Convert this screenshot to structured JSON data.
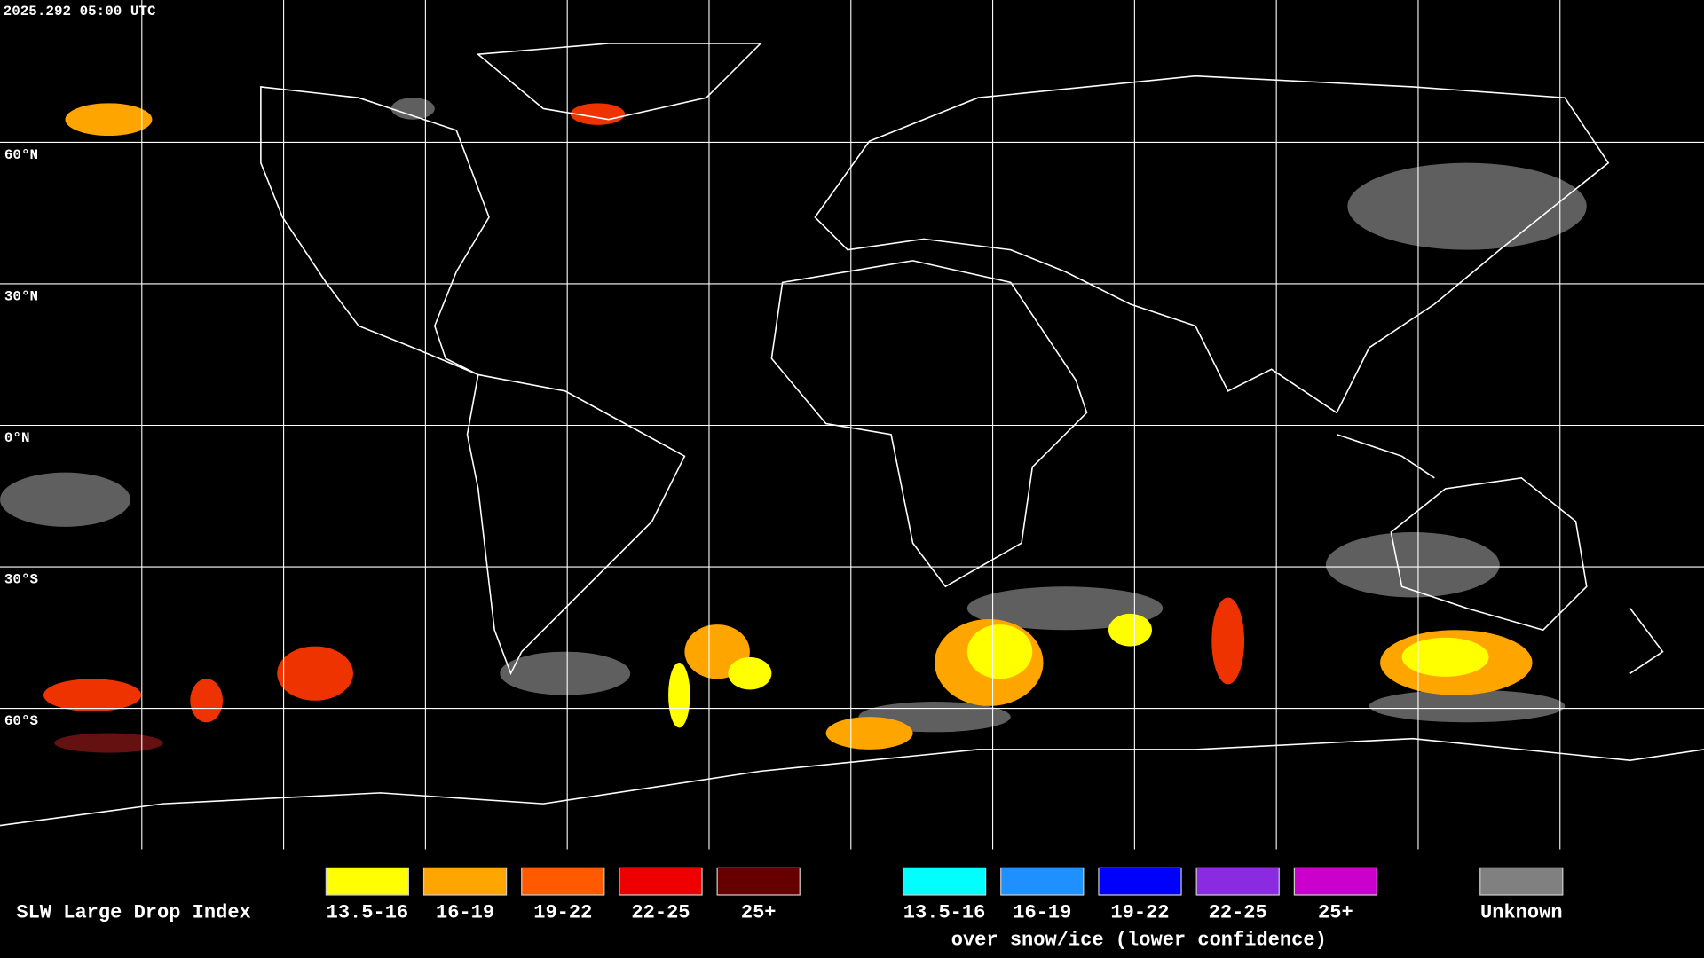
{
  "header": {
    "timestamp": "2025.292 05:00 UTC"
  },
  "map": {
    "latitude_labels": [
      "60°N",
      "30°N",
      "0°N",
      "30°S",
      "60°S"
    ]
  },
  "legend": {
    "title": "SLW Large Drop Index",
    "items": [
      {
        "label": "13.5-16",
        "color": "#ffff00"
      },
      {
        "label": "16-19",
        "color": "#ffa500"
      },
      {
        "label": "19-22",
        "color": "#ff5a00"
      },
      {
        "label": "22-25",
        "color": "#ee0000"
      },
      {
        "label": "25+",
        "color": "#660000"
      }
    ],
    "snow_items": [
      {
        "label": "13.5-16",
        "color": "#00ffff"
      },
      {
        "label": "16-19",
        "color": "#1e90ff"
      },
      {
        "label": "19-22",
        "color": "#0000ff"
      },
      {
        "label": "22-25",
        "color": "#8a2be2"
      },
      {
        "label": "25+",
        "color": "#cc00cc"
      }
    ],
    "snow_note": "over snow/ice (lower confidence)",
    "unknown": {
      "label": "Unknown",
      "color": "#808080"
    }
  }
}
